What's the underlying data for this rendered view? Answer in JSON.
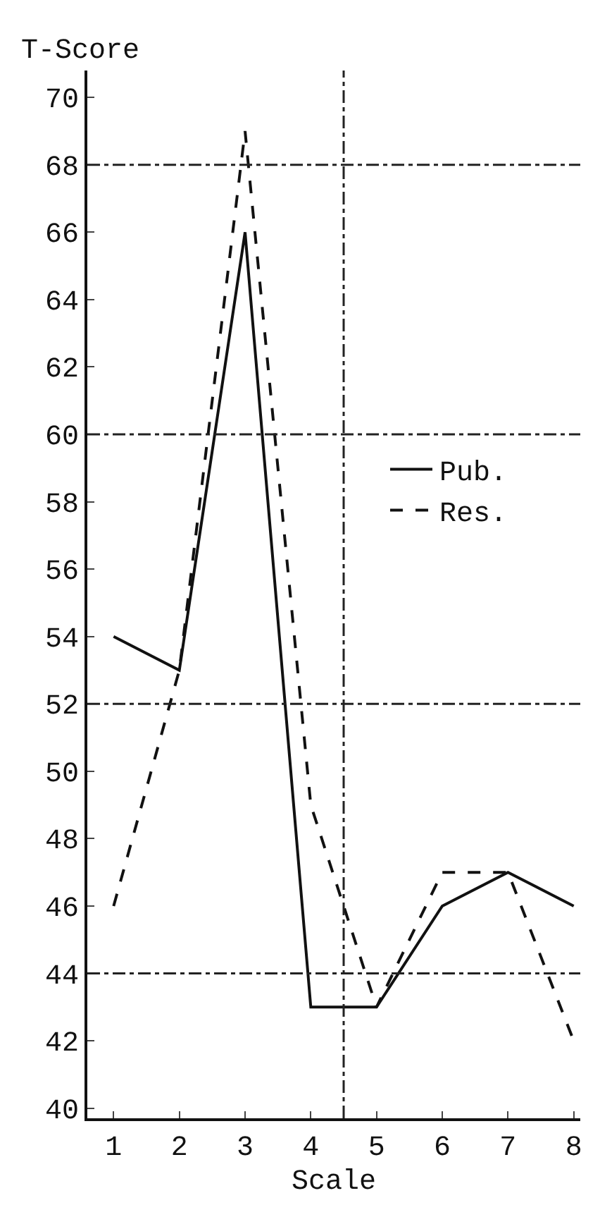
{
  "chart_data": {
    "type": "line",
    "xlabel": "Scale",
    "ylabel": "T-Score",
    "x": [
      1,
      2,
      3,
      4,
      5,
      6,
      7,
      8
    ],
    "series": [
      {
        "name": "Pub.",
        "color": "#111111",
        "line_style": "solid",
        "values": [
          54,
          53,
          66,
          43,
          43,
          46,
          47,
          46
        ]
      },
      {
        "name": "Res.",
        "color": "#111111",
        "line_style": "dashed",
        "values": [
          46,
          53,
          69,
          49,
          43,
          47,
          47,
          42
        ]
      }
    ],
    "xlim": [
      0.6,
      8.1
    ],
    "xticks": [
      1,
      2,
      3,
      4,
      5,
      6,
      7,
      8
    ],
    "ylim": [
      39.7,
      70.8
    ],
    "yticks": [
      40,
      42,
      44,
      46,
      48,
      50,
      52,
      54,
      56,
      58,
      60,
      62,
      64,
      66,
      68,
      70
    ],
    "ref_lines": [
      {
        "axis": "y",
        "value": 68
      },
      {
        "axis": "y",
        "value": 60
      },
      {
        "axis": "y",
        "value": 52
      },
      {
        "axis": "y",
        "value": 44
      },
      {
        "axis": "x",
        "value": 4.5
      }
    ],
    "grid": false,
    "legend": "right",
    "marker": "none"
  }
}
